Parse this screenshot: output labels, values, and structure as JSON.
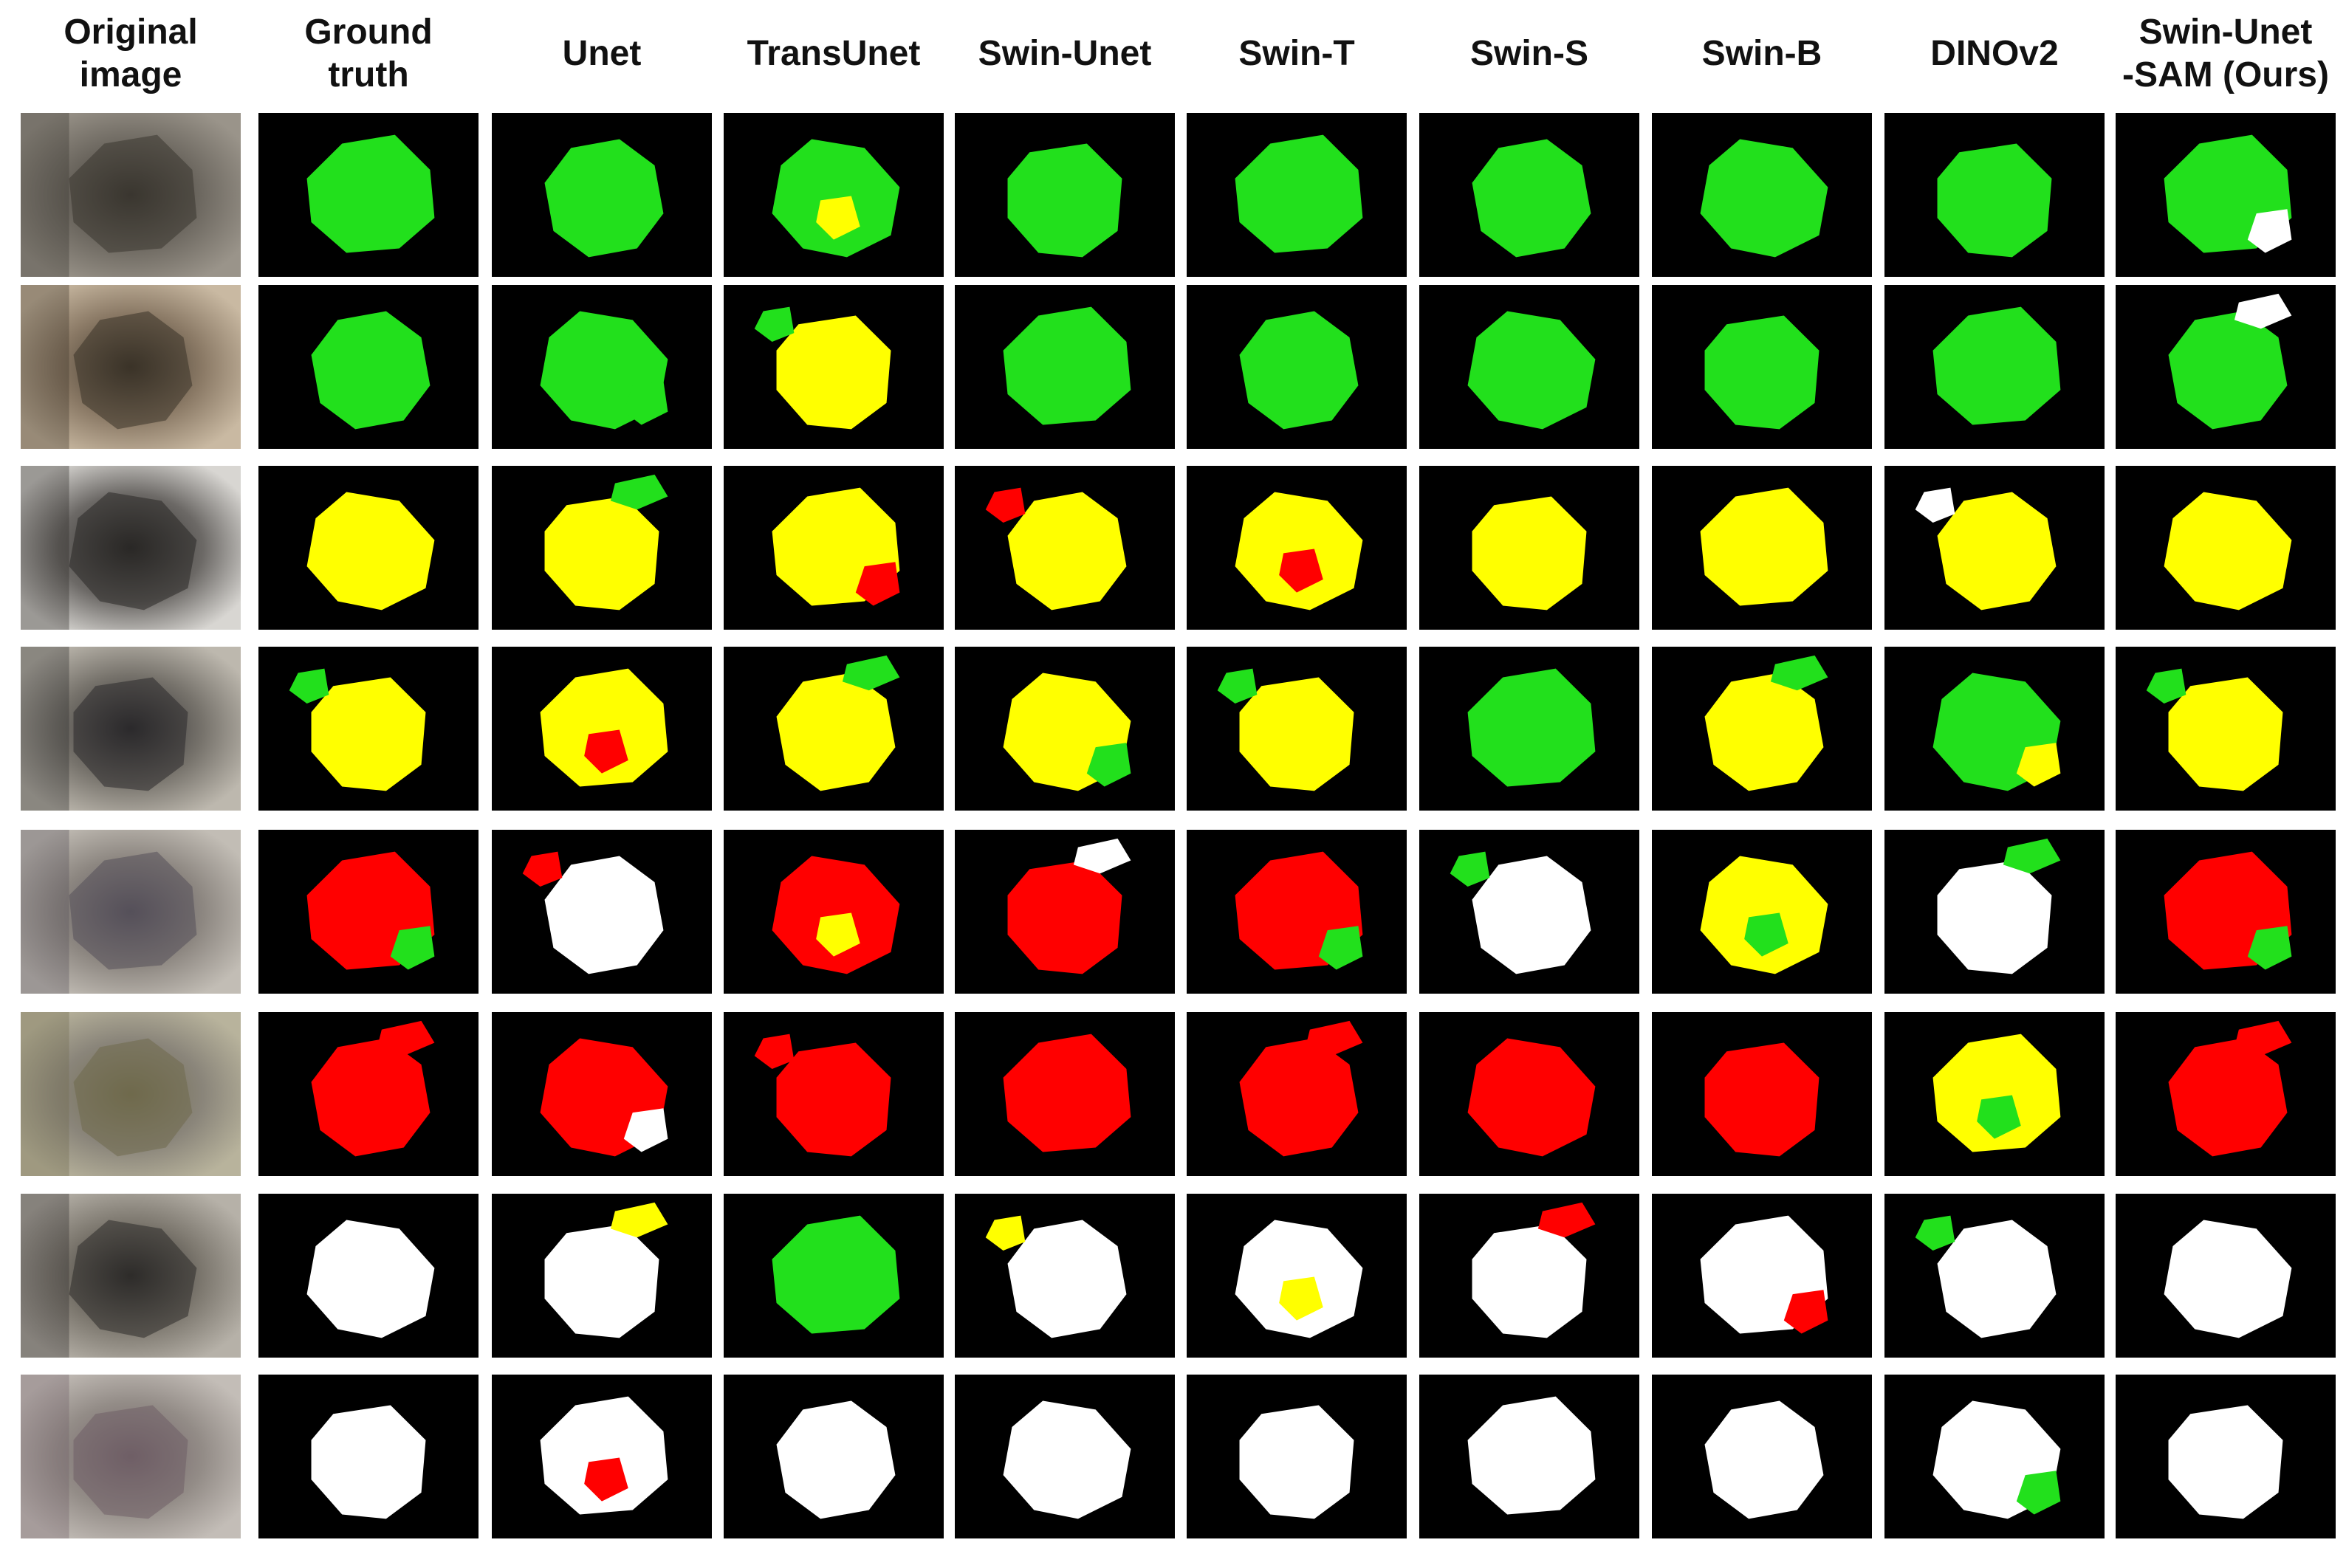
{
  "columns": [
    {
      "key": "original",
      "label": "Original\nimage"
    },
    {
      "key": "gt",
      "label": "Ground\ntruth"
    },
    {
      "key": "unet",
      "label": "Unet"
    },
    {
      "key": "transunet",
      "label": "TransUnet"
    },
    {
      "key": "swinunet",
      "label": "Swin-Unet"
    },
    {
      "key": "swint",
      "label": "Swin-T"
    },
    {
      "key": "swins",
      "label": "Swin-S"
    },
    {
      "key": "swinb",
      "label": "Swin-B"
    },
    {
      "key": "dinov2",
      "label": "DINOv2"
    },
    {
      "key": "ours",
      "label": "Swin-Unet\n-SAM (Ours)"
    }
  ],
  "class_colors": {
    "green": "#22e01c",
    "yellow": "#ffff00",
    "red": "#ff0000",
    "white": "#ffffff",
    "background": "#000000"
  },
  "rows": [
    {
      "photo": {
        "base": "#6f6a62",
        "tint": "#3a3630",
        "accent": "#9a948a"
      },
      "masks": [
        "green",
        "green",
        "green",
        "green",
        "green",
        "green",
        "green",
        "green",
        "green"
      ],
      "secondary": [
        null,
        null,
        "yellow",
        null,
        null,
        null,
        null,
        null,
        "white"
      ]
    },
    {
      "photo": {
        "base": "#8b7a66",
        "tint": "#3b3328",
        "accent": "#c9b9a2"
      },
      "masks": [
        "green",
        "green",
        "yellow",
        "green",
        "green",
        "green",
        "green",
        "green",
        "green"
      ],
      "secondary": [
        null,
        "green",
        "green",
        null,
        null,
        null,
        null,
        null,
        "white"
      ]
    },
    {
      "photo": {
        "base": "#6c6966",
        "tint": "#2a2826",
        "accent": "#d8d6d2"
      },
      "masks": [
        "yellow",
        "yellow",
        "yellow",
        "yellow",
        "yellow",
        "yellow",
        "yellow",
        "yellow",
        "yellow"
      ],
      "secondary": [
        null,
        "green",
        "red",
        "red",
        "red",
        null,
        null,
        "white",
        null
      ]
    },
    {
      "photo": {
        "base": "#77736c",
        "tint": "#2b2a2c",
        "accent": "#bdb8ae"
      },
      "masks": [
        "yellow",
        "yellow",
        "yellow",
        "yellow",
        "yellow",
        "green",
        "yellow",
        "green",
        "yellow"
      ],
      "secondary": [
        "green",
        "red",
        "green",
        "green",
        "green",
        "green",
        "green",
        "yellow",
        "green"
      ]
    },
    {
      "photo": {
        "base": "#8d8781",
        "tint": "#55505a",
        "accent": "#c2bdb5"
      },
      "masks": [
        "red",
        "white",
        "red",
        "red",
        "red",
        "white",
        "yellow",
        "white",
        "red"
      ],
      "secondary": [
        "green",
        "red",
        "yellow",
        "white",
        "green",
        "green",
        "green",
        "green",
        "green"
      ]
    },
    {
      "photo": {
        "base": "#8a857a",
        "tint": "#6f6a4c",
        "accent": "#b8b39c"
      },
      "masks": [
        "red",
        "red",
        "red",
        "red",
        "red",
        "red",
        "red",
        "yellow",
        "red"
      ],
      "secondary": [
        "red",
        "white",
        "red",
        "red",
        "red",
        null,
        null,
        "green",
        "red"
      ]
    },
    {
      "photo": {
        "base": "#7d786f",
        "tint": "#2e2c2a",
        "accent": "#b6b1a8"
      },
      "masks": [
        "white",
        "white",
        "green",
        "white",
        "white",
        "white",
        "white",
        "white",
        "white"
      ],
      "secondary": [
        null,
        "yellow",
        null,
        "yellow",
        "yellow",
        "red",
        "red",
        "green",
        null
      ]
    },
    {
      "photo": {
        "base": "#938c87",
        "tint": "#6f5f66",
        "accent": "#c3bdb7"
      },
      "masks": [
        "white",
        "white",
        "white",
        "white",
        "white",
        "white",
        "white",
        "white",
        "white"
      ],
      "secondary": [
        null,
        "red",
        null,
        null,
        null,
        null,
        null,
        "green",
        null
      ]
    }
  ]
}
